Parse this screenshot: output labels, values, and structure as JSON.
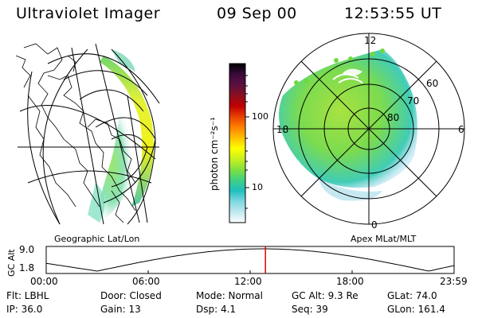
{
  "header": {
    "title": "Ultraviolet Imager",
    "date": "09 Sep 00",
    "time": "12:53:55 UT"
  },
  "left_map": {
    "label": "Geographic Lat/Lon"
  },
  "right_map": {
    "label": "Apex MLat/MLT",
    "mlt_labels": [
      "12",
      "18",
      "6",
      "0"
    ],
    "lat_labels": [
      "60",
      "70",
      "80"
    ]
  },
  "colorbar": {
    "unit_label": "photon cm⁻²s⁻¹",
    "ticks": [
      "100",
      "10"
    ],
    "colors": [
      "#000000",
      "#3a0a3a",
      "#5a1040",
      "#8a1020",
      "#c00000",
      "#e84000",
      "#ff8000",
      "#ffc000",
      "#ffff00",
      "#c8f020",
      "#80e040",
      "#40d080",
      "#20c0c0",
      "#80d8e0",
      "#c0e8f0",
      "#ffffff"
    ]
  },
  "timeline": {
    "y_label": "GC Alt",
    "y_ticks": [
      "9.0",
      "1.8"
    ],
    "x_ticks": [
      "00:00",
      "06:00",
      "12:00",
      "18:00",
      "23:59"
    ],
    "current_hour": 12.9,
    "marker_color": "#e00000"
  },
  "info": {
    "row1": {
      "flt": "Flt: LBHL",
      "door": "Door: Closed",
      "mode": "Mode: Normal",
      "gcalt": "GC Alt: 9.3 Re",
      "glat": "GLat:  74.0"
    },
    "row2": {
      "ip": "IP: 36.0",
      "gain": "Gain: 13",
      "dsp": "Dsp:    4.1",
      "seq": "Seq: 39",
      "glon": "GLon: 161.4"
    }
  }
}
